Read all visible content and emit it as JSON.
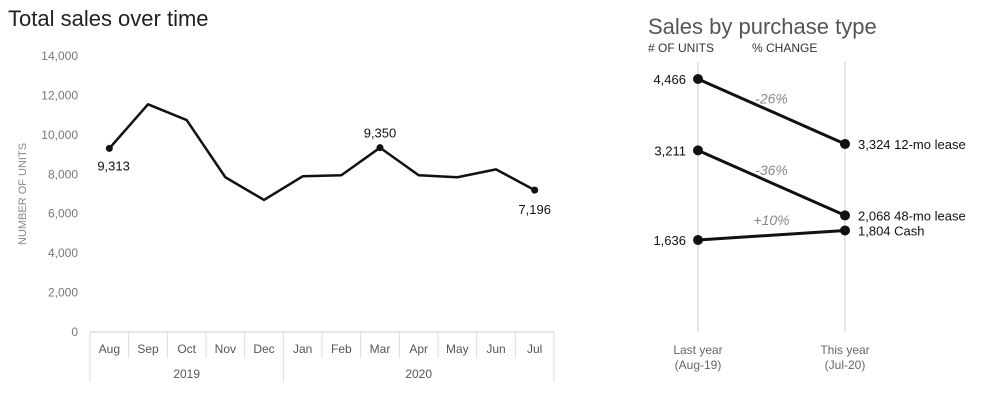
{
  "chart_data": [
    {
      "type": "line",
      "title": "Total sales over time",
      "ylabel": "NUMBER OF UNITS",
      "ylim": [
        0,
        14000
      ],
      "yticks": [
        0,
        2000,
        4000,
        6000,
        8000,
        10000,
        12000,
        14000
      ],
      "ytick_labels": [
        "0",
        "2,000",
        "4,000",
        "6,000",
        "8,000",
        "10,000",
        "12,000",
        "14,000"
      ],
      "categories": [
        "Aug",
        "Sep",
        "Oct",
        "Nov",
        "Dec",
        "Jan",
        "Feb",
        "Mar",
        "Apr",
        "May",
        "Jun",
        "Jul"
      ],
      "groups": [
        {
          "label": "2019",
          "count": 5
        },
        {
          "label": "2020",
          "count": 7
        }
      ],
      "series": [
        {
          "values": [
            9313,
            11550,
            10750,
            7850,
            6700,
            7900,
            7950,
            9350,
            7950,
            7850,
            8250,
            7196
          ]
        }
      ],
      "point_labels": [
        {
          "index": 0,
          "text": "9,313"
        },
        {
          "index": 7,
          "text": "9,350"
        },
        {
          "index": 11,
          "text": "7,196"
        }
      ],
      "grid": false,
      "line_color": "#111111"
    },
    {
      "type": "slope",
      "title": "Sales by purchase type",
      "column_headers": [
        "# OF UNITS",
        "% CHANGE"
      ],
      "categories": [
        "Last year\n(Aug-19)",
        "This year\n(Jul-20)"
      ],
      "series": [
        {
          "name": "12-mo lease",
          "values": [
            4466,
            3324
          ],
          "start_label": "4,466",
          "end_label": "3,324",
          "change": "-26%"
        },
        {
          "name": "48-mo lease",
          "values": [
            3211,
            2068
          ],
          "start_label": "3,211",
          "end_label": "2,068",
          "change": "-36%"
        },
        {
          "name": "Cash",
          "values": [
            1636,
            1804
          ],
          "start_label": "1,636",
          "end_label": "1,804",
          "change": "+10%"
        }
      ],
      "line_color": "#111111",
      "change_color": "#888888"
    }
  ]
}
